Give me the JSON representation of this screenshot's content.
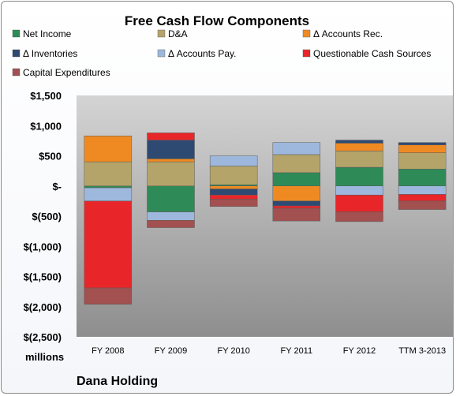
{
  "chart_data": {
    "type": "stacked-bar",
    "title": "Free Cash Flow Components",
    "company": "Dana Holding",
    "units_label": "millions",
    "ylim": [
      -2500,
      1500
    ],
    "y_ticks": [
      1500,
      1000,
      500,
      0,
      -500,
      -1000,
      -1500,
      -2000,
      -2500
    ],
    "y_tick_labels": [
      "$1,500",
      "$1,000",
      "$500",
      "$-",
      "$(500)",
      "$(1,000)",
      "$(1,500)",
      "$(2,000)",
      "$(2,500)"
    ],
    "categories": [
      "FY 2008",
      "FY 2009",
      "FY 2010",
      "FY 2011",
      "FY 2012",
      "TTM 3-2013"
    ],
    "legend_position": "top",
    "grid": false,
    "series": [
      {
        "name": "Net Income",
        "color": "#2e8b57",
        "values": [
          -30,
          -430,
          20,
          220,
          310,
          280
        ]
      },
      {
        "name": "D&A",
        "color": "#b5a46a",
        "values": [
          400,
          400,
          310,
          300,
          270,
          270
        ]
      },
      {
        "name": "Δ Accounts Rec.",
        "color": "#ef8a22",
        "values": [
          430,
          50,
          -50,
          -250,
          130,
          130
        ]
      },
      {
        "name": "Δ Inventories",
        "color": "#2e4a72",
        "values": [
          0,
          310,
          -100,
          -80,
          50,
          40
        ]
      },
      {
        "name": "Δ Accounts Pay.",
        "color": "#9db8dc",
        "values": [
          -220,
          -140,
          170,
          200,
          -150,
          -140
        ]
      },
      {
        "name": "Questionable Cash Sources",
        "color": "#e8262a",
        "values": [
          -1440,
          120,
          -70,
          -40,
          -280,
          -110
        ]
      },
      {
        "name": "Capital Expenditures",
        "color": "#a35050",
        "values": [
          -270,
          -120,
          -120,
          -210,
          -160,
          -140
        ]
      }
    ]
  }
}
